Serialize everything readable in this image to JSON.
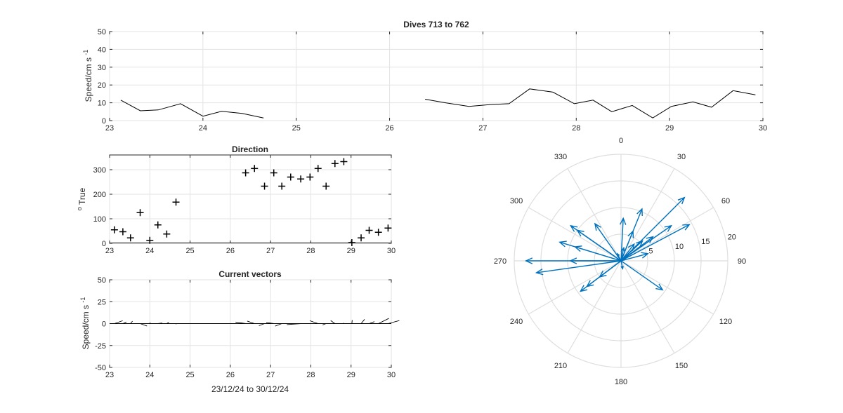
{
  "chart_data": [
    {
      "type": "line",
      "title": "Dives 713 to 762",
      "xlabel": "",
      "ylabel": "Speed/cm s",
      "ylabel_exponent": "-1",
      "xlim": [
        23,
        30
      ],
      "ylim": [
        0,
        50
      ],
      "xticks": [
        23,
        24,
        25,
        26,
        27,
        28,
        29,
        30
      ],
      "yticks": [
        0,
        10,
        20,
        30,
        40,
        50
      ],
      "grid": true,
      "color": "#000000",
      "segments": [
        {
          "x": [
            23.12,
            23.33,
            23.52,
            23.76,
            24.0,
            24.2,
            24.42,
            24.65
          ],
          "y": [
            11.5,
            5.5,
            6.0,
            9.5,
            2.5,
            5.2,
            4.0,
            1.5
          ]
        },
        {
          "x": [
            26.38,
            26.6,
            26.85,
            27.08,
            27.28,
            27.5,
            27.75,
            27.98,
            28.18,
            28.38,
            28.6,
            28.82,
            29.02,
            29.25,
            29.45,
            29.68,
            29.92
          ],
          "y": [
            12.0,
            10.0,
            8.0,
            9.0,
            9.5,
            17.8,
            16.0,
            9.5,
            11.5,
            5.0,
            8.5,
            1.5,
            8.0,
            10.5,
            7.5,
            16.8,
            14.5
          ]
        }
      ]
    },
    {
      "type": "scatter",
      "title": "Direction",
      "xlabel": "",
      "ylabel": "True",
      "ylabel_prefix": "o",
      "xlim": [
        23,
        30
      ],
      "ylim": [
        0,
        360
      ],
      "xticks": [
        23,
        24,
        25,
        26,
        27,
        28,
        29,
        30
      ],
      "yticks": [
        0,
        100,
        200,
        300
      ],
      "grid": true,
      "marker": "+",
      "color": "#000000",
      "x": [
        23.12,
        23.33,
        23.52,
        23.76,
        24.0,
        24.2,
        24.42,
        24.65,
        26.38,
        26.6,
        26.85,
        27.08,
        27.28,
        27.5,
        27.75,
        27.98,
        28.18,
        28.38,
        28.6,
        28.82,
        29.02,
        29.25,
        29.45,
        29.68,
        29.92
      ],
      "y": [
        55,
        47,
        22,
        125,
        12,
        75,
        38,
        168,
        287,
        305,
        233,
        287,
        233,
        270,
        262,
        270,
        305,
        233,
        325,
        333,
        3,
        22,
        53,
        45,
        62
      ]
    },
    {
      "type": "quiver",
      "title": "Current vectors",
      "xlabel": "23/12/24 to 30/12/24",
      "ylabel": "Speed/cm s",
      "ylabel_exponent": "-1",
      "xlim": [
        23,
        30
      ],
      "ylim": [
        -50,
        50
      ],
      "xticks": [
        23,
        24,
        25,
        26,
        27,
        28,
        29,
        30
      ],
      "yticks": [
        -50,
        -25,
        0,
        25,
        50
      ],
      "grid": true,
      "color": "#000000",
      "note": "stick vectors drawn from the per-dive speed and direction above"
    },
    {
      "type": "compass",
      "title": "",
      "angle_ticks": [
        0,
        30,
        60,
        90,
        120,
        150,
        180,
        210,
        240,
        270,
        300,
        330
      ],
      "radius_ticks": [
        5,
        10,
        15,
        20
      ],
      "rmax": 20,
      "grid": true,
      "color": "#0072BD",
      "note": "arrows use the per-dive speed and direction from the panels above"
    }
  ]
}
